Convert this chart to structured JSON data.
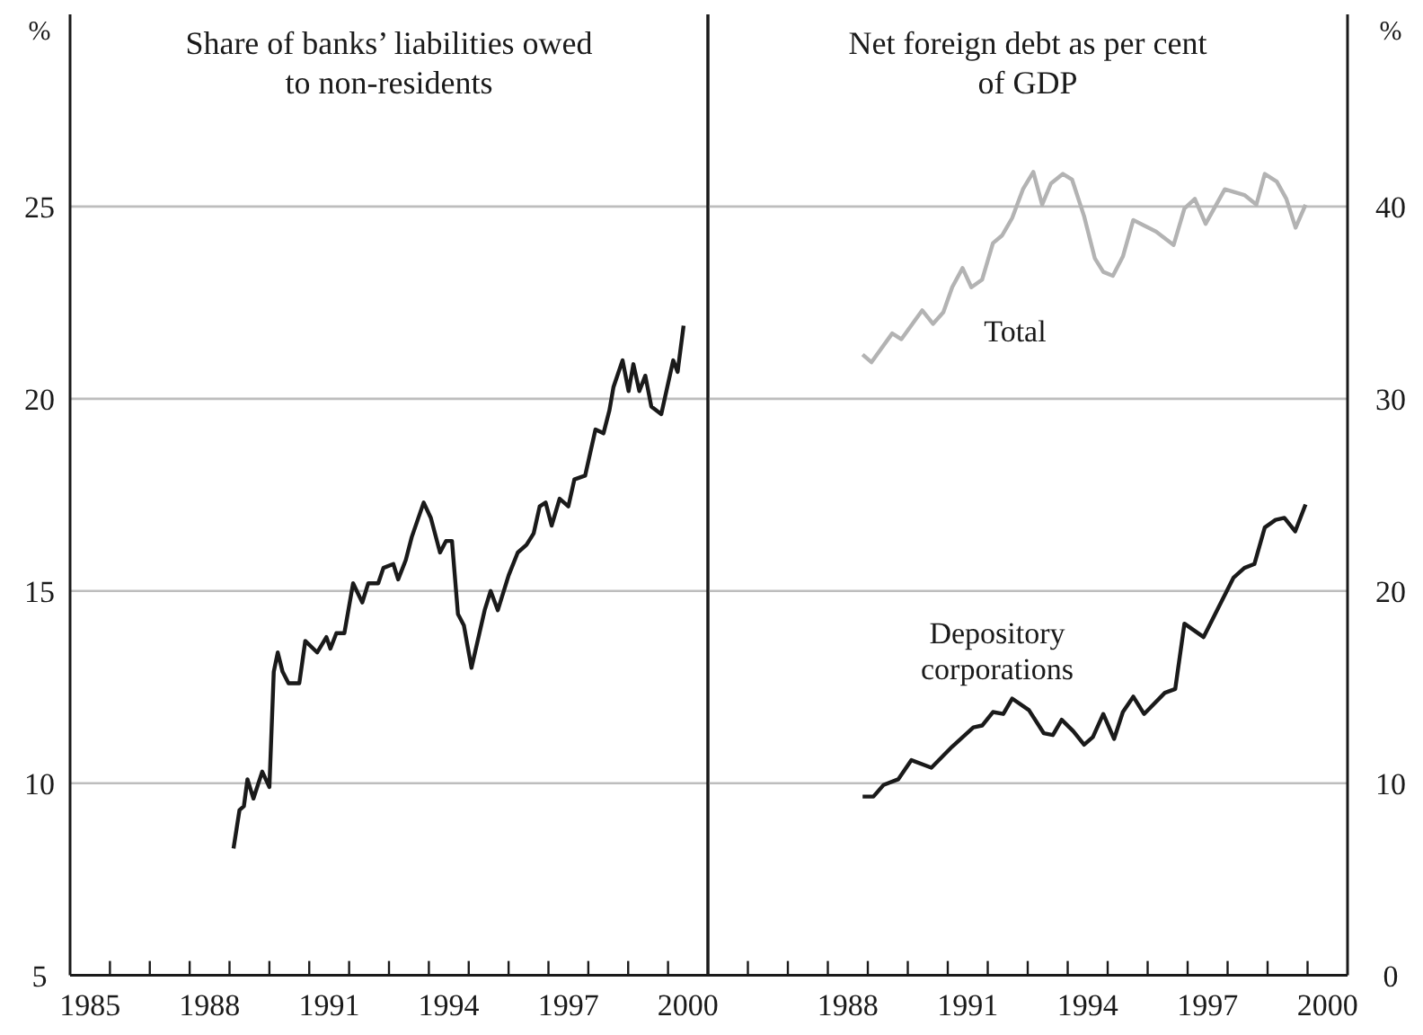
{
  "chart_data": [
    {
      "type": "line",
      "title": "Share of banks’ liabilities owed to non-residents",
      "ylabel": "%",
      "xlim": [
        1985,
        2001
      ],
      "ylim": [
        5,
        30
      ],
      "yticks": [
        5,
        10,
        15,
        20,
        25
      ],
      "xticks": [
        {
          "value": 1985.5,
          "label": "1985"
        },
        {
          "value": 1986,
          "label": null
        },
        {
          "value": 1987,
          "label": null
        },
        {
          "value": 1988,
          "label": null
        },
        {
          "value": 1988.5,
          "label": "1988"
        },
        {
          "value": 1989,
          "label": null
        },
        {
          "value": 1990,
          "label": null
        },
        {
          "value": 1991,
          "label": null
        },
        {
          "value": 1991.5,
          "label": "1991"
        },
        {
          "value": 1992,
          "label": null
        },
        {
          "value": 1993,
          "label": null
        },
        {
          "value": 1994,
          "label": null
        },
        {
          "value": 1994.5,
          "label": "1994"
        },
        {
          "value": 1995,
          "label": null
        },
        {
          "value": 1996,
          "label": null
        },
        {
          "value": 1997,
          "label": null
        },
        {
          "value": 1997.5,
          "label": "1997"
        },
        {
          "value": 1998,
          "label": null
        },
        {
          "value": 1999,
          "label": null
        },
        {
          "value": 2000,
          "label": null
        },
        {
          "value": 2000.5,
          "label": "2000"
        }
      ],
      "grid": "y",
      "marker": "none",
      "line_style": "solid",
      "series": [
        {
          "color": "#1a1a1a",
          "x": [
            1989.1,
            1989.25,
            1989.36,
            1989.45,
            1989.6,
            1989.82,
            1990.0,
            1990.11,
            1990.21,
            1990.33,
            1990.48,
            1990.75,
            1990.9,
            1991.2,
            1991.43,
            1991.53,
            1991.68,
            1991.88,
            1992.1,
            1992.33,
            1992.48,
            1992.73,
            1992.86,
            1993.11,
            1993.23,
            1993.42,
            1993.57,
            1993.87,
            1994.05,
            1994.28,
            1994.43,
            1994.58,
            1994.73,
            1994.88,
            1995.07,
            1995.4,
            1995.55,
            1995.73,
            1996.0,
            1996.23,
            1996.45,
            1996.63,
            1996.78,
            1996.93,
            1997.08,
            1997.28,
            1997.5,
            1997.65,
            1997.92,
            1998.18,
            1998.38,
            1998.53,
            1998.63,
            1998.86,
            1999.01,
            1999.13,
            1999.28,
            1999.43,
            1999.58,
            1999.83,
            2000.13,
            2000.24,
            2000.39
          ],
          "values": [
            8.3,
            9.3,
            9.4,
            10.1,
            9.6,
            10.3,
            9.9,
            12.9,
            13.4,
            12.9,
            12.6,
            12.6,
            13.7,
            13.4,
            13.8,
            13.5,
            13.9,
            13.9,
            15.2,
            14.7,
            15.2,
            15.2,
            15.6,
            15.7,
            15.3,
            15.8,
            16.4,
            17.3,
            16.9,
            16.0,
            16.3,
            16.3,
            14.4,
            14.1,
            13.0,
            14.5,
            15.0,
            14.5,
            15.4,
            16.0,
            16.2,
            16.5,
            17.2,
            17.3,
            16.7,
            17.4,
            17.2,
            17.9,
            18.0,
            19.2,
            19.1,
            19.7,
            20.3,
            21.0,
            20.2,
            20.9,
            20.2,
            20.6,
            19.8,
            19.6,
            21.0,
            20.7,
            21.9
          ]
        }
      ]
    },
    {
      "type": "line",
      "title": "Net foreign debt as per cent of GDP",
      "y2label": "%",
      "xlim": [
        1985,
        2001
      ],
      "y2lim": [
        0,
        50
      ],
      "y2ticks": [
        0,
        10,
        20,
        30,
        40
      ],
      "xticks": [
        {
          "value": 1986,
          "label": null
        },
        {
          "value": 1987,
          "label": null
        },
        {
          "value": 1988,
          "label": null
        },
        {
          "value": 1988.5,
          "label": "1988"
        },
        {
          "value": 1989,
          "label": null
        },
        {
          "value": 1990,
          "label": null
        },
        {
          "value": 1991,
          "label": null
        },
        {
          "value": 1991.5,
          "label": "1991"
        },
        {
          "value": 1992,
          "label": null
        },
        {
          "value": 1993,
          "label": null
        },
        {
          "value": 1994,
          "label": null
        },
        {
          "value": 1994.5,
          "label": "1994"
        },
        {
          "value": 1995,
          "label": null
        },
        {
          "value": 1996,
          "label": null
        },
        {
          "value": 1997,
          "label": null
        },
        {
          "value": 1997.5,
          "label": "1997"
        },
        {
          "value": 1998,
          "label": null
        },
        {
          "value": 1999,
          "label": null
        },
        {
          "value": 2000,
          "label": null
        },
        {
          "value": 2000.5,
          "label": "2000"
        }
      ],
      "grid": "y",
      "marker": "none",
      "line_style": "solid",
      "series": [
        {
          "name": "Total",
          "color": "#b3b3b3",
          "axis": "y2",
          "x": [
            1988.87,
            1989.09,
            1989.61,
            1989.84,
            1990.36,
            1990.63,
            1990.89,
            1991.11,
            1991.37,
            1991.59,
            1991.86,
            1992.13,
            1992.36,
            1992.61,
            1992.88,
            1993.14,
            1993.36,
            1993.58,
            1993.88,
            1994.11,
            1994.41,
            1994.68,
            1994.89,
            1995.13,
            1995.38,
            1995.64,
            1996.21,
            1996.65,
            1996.92,
            1997.18,
            1997.45,
            1997.93,
            1998.42,
            1998.72,
            1998.93,
            1999.23,
            1999.47,
            1999.7,
            1999.95
          ],
          "values": [
            32.3,
            31.9,
            33.4,
            33.1,
            34.6,
            33.9,
            34.5,
            35.8,
            36.8,
            35.8,
            36.2,
            38.1,
            38.5,
            39.4,
            40.9,
            41.8,
            40.1,
            41.2,
            41.7,
            41.4,
            39.5,
            37.3,
            36.6,
            36.4,
            37.4,
            39.3,
            38.7,
            38.0,
            39.9,
            40.4,
            39.1,
            40.9,
            40.6,
            40.1,
            41.7,
            41.3,
            40.4,
            38.9,
            40.1
          ]
        },
        {
          "name": "Depository corporations",
          "color": "#1a1a1a",
          "axis": "y2",
          "x": [
            1988.87,
            1989.14,
            1989.39,
            1989.76,
            1990.09,
            1990.59,
            1991.11,
            1991.64,
            1991.86,
            1992.13,
            1992.39,
            1992.61,
            1993.03,
            1993.4,
            1993.63,
            1993.85,
            1994.14,
            1994.41,
            1994.63,
            1994.89,
            1995.16,
            1995.38,
            1995.64,
            1995.91,
            1996.43,
            1996.69,
            1996.92,
            1997.4,
            1998.15,
            1998.42,
            1998.67,
            1998.93,
            1999.2,
            1999.42,
            1999.69,
            1999.95
          ],
          "values": [
            9.3,
            9.3,
            9.9,
            10.2,
            11.2,
            10.8,
            11.9,
            12.9,
            13.0,
            13.7,
            13.6,
            14.4,
            13.8,
            12.6,
            12.5,
            13.3,
            12.7,
            12.0,
            12.4,
            13.6,
            12.3,
            13.7,
            14.5,
            13.6,
            14.7,
            14.9,
            18.3,
            17.6,
            20.7,
            21.2,
            21.4,
            23.3,
            23.7,
            23.8,
            23.1,
            24.5
          ]
        }
      ]
    }
  ]
}
